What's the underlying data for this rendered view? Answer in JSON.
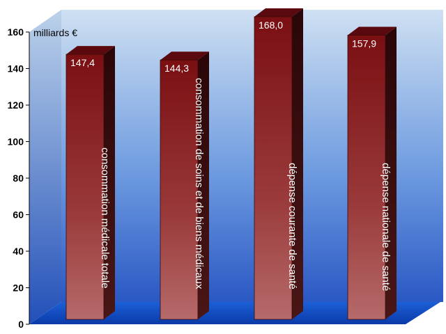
{
  "chart_data": {
    "type": "bar",
    "categories": [
      "consommation médicale totale",
      "consommation de soins et de biens médicaux",
      "dépense courante de santé",
      "dépense nationale de santé"
    ],
    "values": [
      147.4,
      144.3,
      168.0,
      157.9
    ],
    "value_labels": [
      "147,4",
      "144,3",
      "168,0",
      "157,9"
    ],
    "ylabel": "milliards €",
    "ylim": [
      0,
      160
    ],
    "yticks": [
      0,
      20,
      40,
      60,
      80,
      100,
      120,
      140,
      160
    ],
    "colors": {
      "bar": "#8b1c1c",
      "bar_side": "#3a0a0a",
      "wall_top": "#c8dcf0",
      "wall_bottom": "#2c5fc8",
      "floor": "#1e58c8"
    },
    "grid": false,
    "legend": "none"
  }
}
